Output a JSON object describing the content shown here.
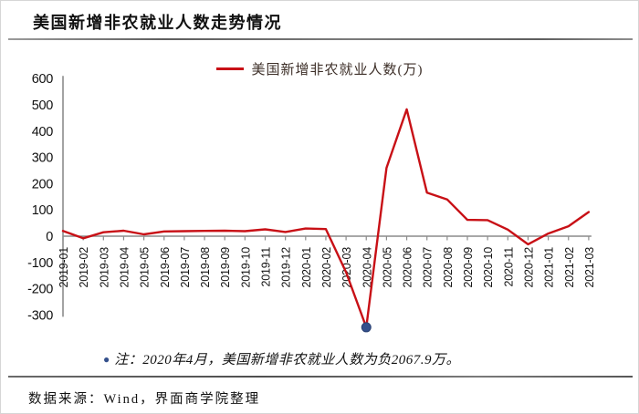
{
  "title": "美国新增非农就业人数走势情况",
  "legend": {
    "label": "美国新增非农就业人数(万)"
  },
  "note": {
    "bullet": "●",
    "text": "注：2020年4月，美国新增非农就业人数为负2067.9万。"
  },
  "source": "数据来源：Wind，界面商学院整理",
  "colors": {
    "line": "#c81016",
    "marker": "#34508c",
    "axis": "#8c8c8c",
    "text": "#111111",
    "legend_text": "#3d2f28",
    "divider": "#676767"
  },
  "chart_data": {
    "type": "line",
    "title": "美国新增非农就业人数走势情况",
    "series_name": "美国新增非农就业人数(万)",
    "legend_position": "top-center",
    "grid": false,
    "x": [
      "2019-01",
      "2019-02",
      "2019-03",
      "2019-04",
      "2019-05",
      "2019-06",
      "2019-07",
      "2019-08",
      "2019-09",
      "2019-10",
      "2019-11",
      "2019-12",
      "2020-01",
      "2020-02",
      "2020-03",
      "2020-04",
      "2020-05",
      "2020-06",
      "2020-07",
      "2020-08",
      "2020-09",
      "2020-10",
      "2020-11",
      "2020-12",
      "2021-01",
      "2021-02",
      "2021-03"
    ],
    "values": [
      20,
      -8,
      15,
      21,
      7,
      18,
      19,
      20,
      21,
      19,
      26,
      16,
      29,
      27,
      -137,
      -2067.9,
      260,
      483,
      166,
      140,
      62,
      61,
      25,
      -31,
      10,
      38,
      92
    ],
    "ylim": [
      -300,
      600
    ],
    "ytick_step": 100,
    "clipped_point": {
      "x": "2020-04",
      "value": -2067.9,
      "plotted_at": -347,
      "marker": "blue-circle"
    }
  }
}
